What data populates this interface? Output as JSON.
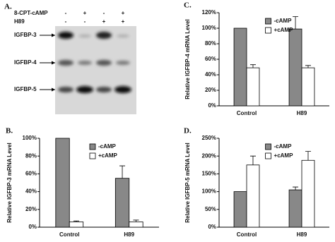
{
  "blot": {
    "panel": "A.",
    "treatments": [
      {
        "name": "8-CPT-cAMP",
        "signs": [
          "-",
          "+",
          "-",
          "+"
        ]
      },
      {
        "name": "H89",
        "signs": [
          "-",
          "-",
          "+",
          "+"
        ]
      }
    ],
    "genes": [
      "IGFBP-3",
      "IGFBP-4",
      "IGFBP-5"
    ]
  },
  "chart_data": [
    {
      "type": "bar",
      "panel": "B.",
      "y_label": "Relative IGFBP-3 mRNA Level",
      "categories": [
        "Control",
        "H89"
      ],
      "series": [
        {
          "name": "-cAMP",
          "color": "#888888",
          "values": [
            100,
            55
          ],
          "errors": [
            null,
            14
          ]
        },
        {
          "name": "+cAMP",
          "color": "#ffffff",
          "values": [
            6,
            6
          ],
          "errors": [
            1,
            2
          ]
        }
      ],
      "ylim": [
        0,
        100
      ],
      "yticks": [
        {
          "value": 0,
          "label": "0%"
        },
        {
          "value": 20,
          "label": "20%"
        },
        {
          "value": 40,
          "label": "40%"
        },
        {
          "value": 60,
          "label": "60%"
        },
        {
          "value": 80,
          "label": "80%"
        },
        {
          "value": 100,
          "label": "100%"
        }
      ],
      "legend": "upper center"
    },
    {
      "type": "bar",
      "panel": "C.",
      "y_label": "Relative IGFBP-4 mRNA Level",
      "categories": [
        "Control",
        "H89"
      ],
      "series": [
        {
          "name": "-cAMP",
          "color": "#888888",
          "values": [
            100,
            99
          ],
          "errors": [
            null,
            16
          ]
        },
        {
          "name": "+cAMP",
          "color": "#ffffff",
          "values": [
            49,
            49
          ],
          "errors": [
            4,
            3
          ]
        }
      ],
      "ylim": [
        0,
        120
      ],
      "yticks": [
        {
          "value": 0,
          "label": "0%"
        },
        {
          "value": 20,
          "label": "20%"
        },
        {
          "value": 40,
          "label": "40%"
        },
        {
          "value": 60,
          "label": "60%"
        },
        {
          "value": 80,
          "label": "80%"
        },
        {
          "value": 100,
          "label": "100%"
        },
        {
          "value": 120,
          "label": "120%"
        }
      ],
      "legend": "upper center"
    },
    {
      "type": "bar",
      "panel": "D.",
      "y_label": "Relative IGFBP-5 mRNA Level",
      "categories": [
        "Control",
        "H89"
      ],
      "series": [
        {
          "name": "-cAMP",
          "color": "#888888",
          "values": [
            100,
            105
          ],
          "errors": [
            null,
            8
          ]
        },
        {
          "name": "+cAMP",
          "color": "#ffffff",
          "values": [
            175,
            188
          ],
          "errors": [
            25,
            25
          ]
        }
      ],
      "ylim": [
        0,
        250
      ],
      "yticks": [
        {
          "value": 0,
          "label": "0%"
        },
        {
          "value": 50,
          "label": "50%"
        },
        {
          "value": 100,
          "label": "100%"
        },
        {
          "value": 150,
          "label": "150%"
        },
        {
          "value": 200,
          "label": "200%"
        },
        {
          "value": 250,
          "label": "250%"
        }
      ],
      "legend": "upper center"
    }
  ]
}
